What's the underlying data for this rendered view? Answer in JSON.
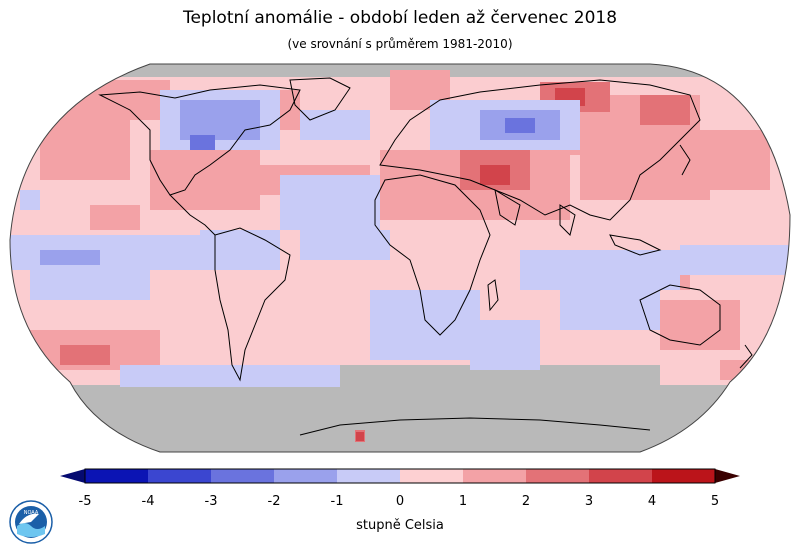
{
  "title": "Teplotní anomálie - období leden až červenec 2018",
  "subtitle": "(ve srovnání s průměrem 1981-2010)",
  "legend": {
    "unit_label": "stupně Celsia",
    "ticks": [
      "-5",
      "-4",
      "-3",
      "-2",
      "-1",
      "0",
      "1",
      "2",
      "3",
      "4",
      "5"
    ],
    "colors": [
      "#0b14b4",
      "#3b46d0",
      "#6a73de",
      "#9aa1ec",
      "#c8cbf7",
      "#fdd0d2",
      "#f3a2a6",
      "#e37277",
      "#d2444b",
      "#bb141a"
    ],
    "min_color": "#050a70",
    "max_color": "#3a0000"
  },
  "map_colors": {
    "no_data": "#b9b9b9",
    "background_warm": "#fbcdd0",
    "coastline": "#000000"
  },
  "logo": {
    "name": "noaa-logo",
    "text": "NOAA"
  }
}
